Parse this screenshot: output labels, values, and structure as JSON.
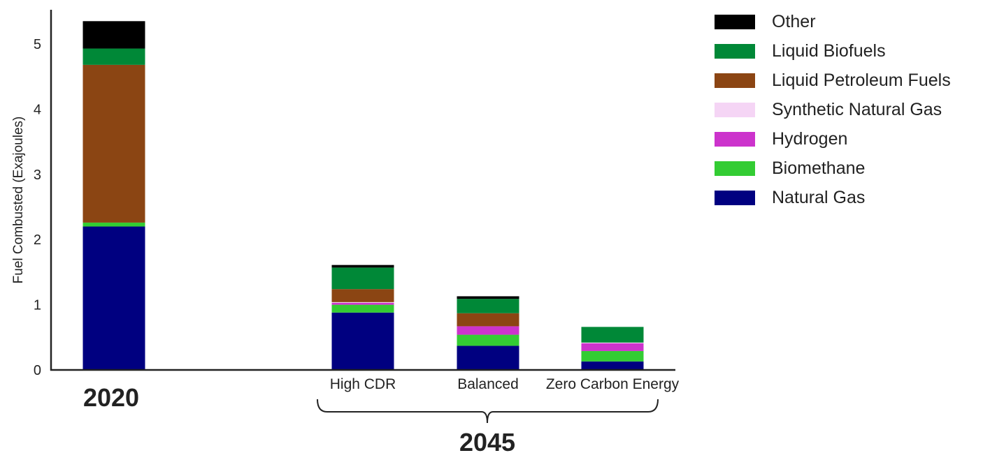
{
  "chart_data": {
    "type": "bar",
    "stacked": true,
    "ylabel": "Fuel Combusted (Exajoules)",
    "xlabel": "",
    "ylim": [
      0,
      5.6
    ],
    "yticks": [
      0,
      1,
      2,
      3,
      4,
      5
    ],
    "grid": false,
    "legend_position": "right",
    "categories": [
      "2020",
      "High CDR",
      "Balanced",
      "Zero Carbon Energy"
    ],
    "groups": [
      {
        "label": "2020",
        "categories": [
          "2020"
        ]
      },
      {
        "label": "2045",
        "categories": [
          "High CDR",
          "Balanced",
          "Zero Carbon Energy"
        ]
      }
    ],
    "series": [
      {
        "name": "Natural Gas",
        "color": "#000080",
        "values": [
          2.2,
          0.88,
          0.37,
          0.13
        ]
      },
      {
        "name": "Biomethane",
        "color": "#33cc33",
        "values": [
          0.06,
          0.12,
          0.17,
          0.16
        ]
      },
      {
        "name": "Hydrogen",
        "color": "#cc33cc",
        "values": [
          0.0,
          0.03,
          0.13,
          0.12
        ]
      },
      {
        "name": "Synthetic Natural Gas",
        "color": "#f5d5f5",
        "values": [
          0.0,
          0.01,
          0.0,
          0.01
        ]
      },
      {
        "name": "Liquid Petroleum Fuels",
        "color": "#8b4513",
        "values": [
          2.42,
          0.2,
          0.2,
          0.0
        ]
      },
      {
        "name": "Liquid Biofuels",
        "color": "#008837",
        "values": [
          0.25,
          0.33,
          0.22,
          0.24
        ]
      },
      {
        "name": "Other",
        "color": "#000000",
        "values": [
          0.42,
          0.04,
          0.04,
          0.0
        ]
      }
    ]
  }
}
